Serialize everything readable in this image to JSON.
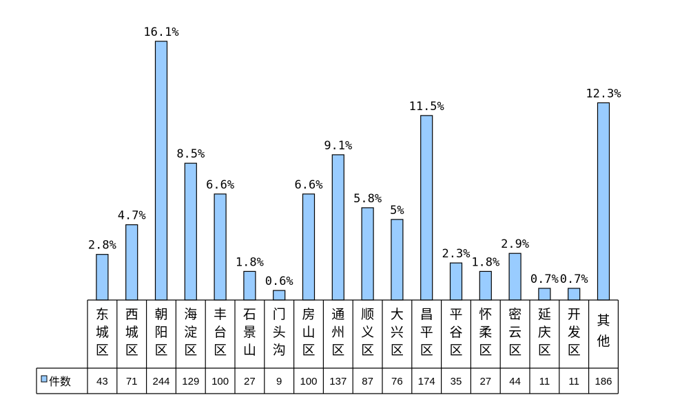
{
  "chart_data": {
    "type": "bar",
    "categories": [
      "东城区",
      "西城区",
      "朝阳区",
      "海淀区",
      "丰台区",
      "石景山",
      "门头沟",
      "房山区",
      "通州区",
      "顺义区",
      "大兴区",
      "昌平区",
      "平谷区",
      "怀柔区",
      "密云区",
      "延庆区",
      "开发区",
      "其他"
    ],
    "series": [
      {
        "name": "件数",
        "values": [
          43,
          71,
          244,
          129,
          100,
          27,
          9,
          100,
          137,
          87,
          76,
          174,
          35,
          27,
          44,
          11,
          11,
          186
        ]
      }
    ],
    "data_labels": [
      "2.8%",
      "4.7%",
      "16.1%",
      "8.5%",
      "6.6%",
      "1.8%",
      "0.6%",
      "6.6%",
      "9.1%",
      "5.8%",
      "5%",
      "11.5%",
      "2.3%",
      "1.8%",
      "2.9%",
      "0.7%",
      "0.7%",
      "12.3%"
    ],
    "legend": "bottom-left (data table)",
    "grid": false,
    "bar_color": "#99ccff",
    "bar_stroke": "#000000"
  }
}
